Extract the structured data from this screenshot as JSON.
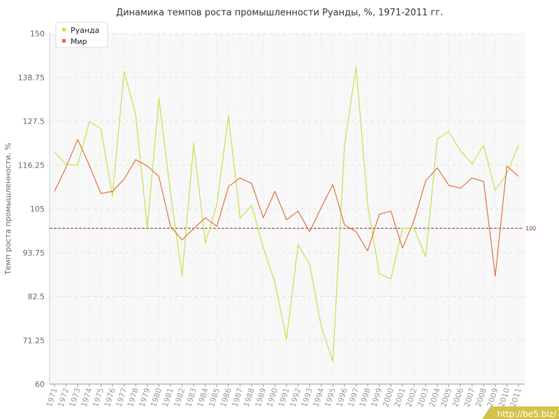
{
  "chart_data": {
    "type": "line",
    "title": "Динамика темпов роста промышленности Руанды, %, 1971-2011 гг.",
    "xlabel": "",
    "ylabel": "Темп роста промышленности, %",
    "ylim": [
      60,
      150
    ],
    "yticks": [
      "60",
      "71.25",
      "82.5",
      "93.75",
      "105",
      "116.25",
      "127.5",
      "138.75",
      "150"
    ],
    "x": [
      1971,
      1972,
      1973,
      1974,
      1975,
      1976,
      1977,
      1978,
      1979,
      1980,
      1981,
      1982,
      1983,
      1984,
      1985,
      1986,
      1987,
      1988,
      1989,
      1990,
      1991,
      1992,
      1993,
      1994,
      1995,
      1996,
      1997,
      1998,
      1999,
      2000,
      2001,
      2002,
      2003,
      2004,
      2005,
      2006,
      2007,
      2008,
      2009,
      2010,
      2011
    ],
    "series": [
      {
        "name": "Руанда",
        "color": "#c5e04a",
        "values": [
          119.6,
          116.4,
          116.2,
          127.4,
          125.6,
          108.2,
          140.3,
          129.1,
          100.2,
          133.4,
          109.0,
          87.8,
          121.8,
          96.2,
          106.1,
          128.8,
          102.6,
          105.9,
          95.0,
          86.2,
          71.5,
          95.8,
          90.7,
          74.7,
          65.8,
          121.2,
          141.5,
          106.0,
          88.3,
          87.0,
          100.0,
          100.0,
          92.7,
          122.9,
          124.8,
          119.9,
          116.5,
          121.3,
          109.7,
          114.0,
          121.4
        ]
      },
      {
        "name": "Мир",
        "color": "#e0703a",
        "values": [
          109.5,
          115.7,
          122.8,
          116.2,
          108.9,
          109.5,
          112.6,
          117.6,
          116.0,
          113.3,
          100.5,
          97.0,
          99.9,
          102.7,
          100.5,
          110.7,
          112.9,
          111.5,
          102.7,
          109.5,
          102.2,
          104.4,
          99.1,
          105.4,
          111.2,
          100.9,
          99.1,
          94.2,
          103.6,
          104.4,
          94.9,
          102.0,
          112.2,
          115.5,
          111.0,
          110.3,
          112.9,
          112.0,
          87.7,
          116.0,
          113.3
        ]
      }
    ],
    "reference_line": {
      "value": 100,
      "label": "100",
      "color": "#8b3a3a"
    },
    "grid": true,
    "legend_position": "top-left",
    "watermark": "http://be5.biz/"
  }
}
